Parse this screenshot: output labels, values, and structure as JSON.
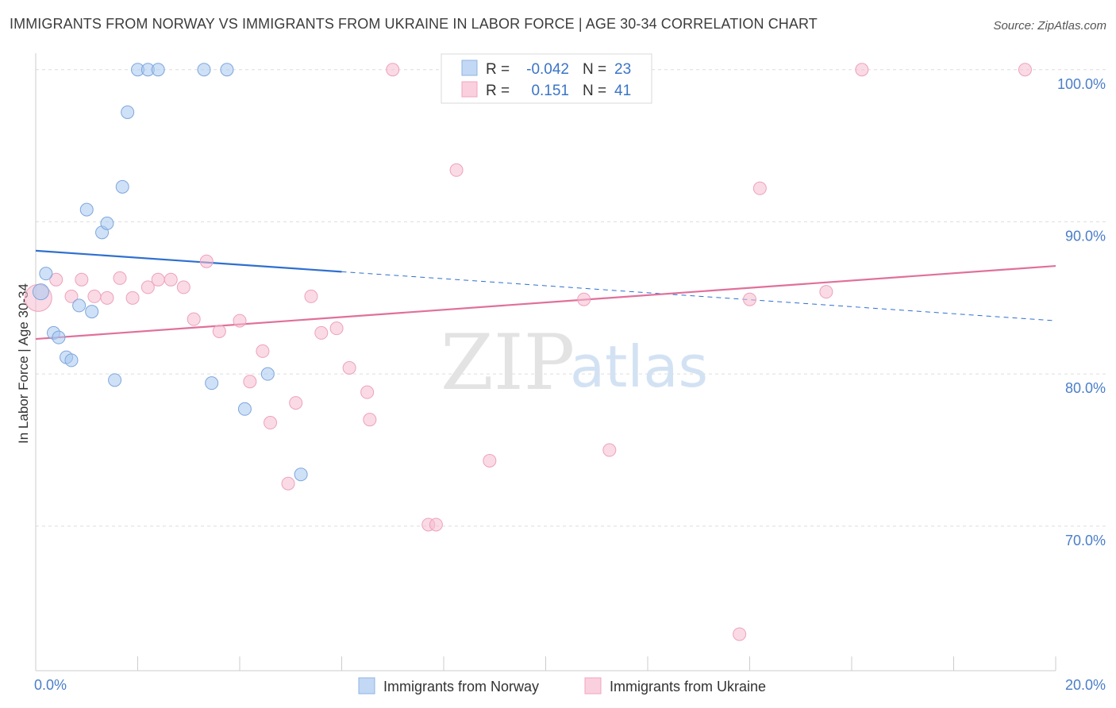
{
  "title": "IMMIGRANTS FROM NORWAY VS IMMIGRANTS FROM UKRAINE IN LABOR FORCE | AGE 30-34 CORRELATION CHART",
  "source": "Source: ZipAtlas.com",
  "watermark": {
    "zip": "ZIP",
    "atlas": "atlas"
  },
  "colors": {
    "norway": "#a8c8f0",
    "norway_line": "#2f6fd0",
    "ukraine": "#f6bcd0",
    "ukraine_line": "#e0709a",
    "axis_text": "#4a7ec9"
  },
  "legend": {
    "norway": {
      "r_label": "R =",
      "r_value": "-0.042",
      "n_label": "N =",
      "n_value": "23"
    },
    "ukraine": {
      "r_label": "R =",
      "r_value": "0.151",
      "n_label": "N =",
      "n_value": "41"
    }
  },
  "chart_data": {
    "type": "scatter",
    "title": "IMMIGRANTS FROM NORWAY VS IMMIGRANTS FROM UKRAINE IN LABOR FORCE | AGE 30-34 CORRELATION CHART",
    "xlabel": "",
    "ylabel": "In Labor Force | Age 30-34",
    "xlim": [
      0,
      20
    ],
    "ylim": [
      60.5,
      101.5
    ],
    "x_ticks": [
      {
        "value": 0,
        "label": "0.0%"
      },
      {
        "value": 20,
        "label": "20.0%"
      }
    ],
    "y_ticks": [
      {
        "value": 100,
        "label": "100.0%"
      },
      {
        "value": 90,
        "label": "90.0%"
      },
      {
        "value": 80,
        "label": "80.0%"
      },
      {
        "value": 70,
        "label": "70.0%"
      }
    ],
    "series": [
      {
        "name": "Immigrants from Norway",
        "points": [
          [
            0.1,
            85.4
          ],
          [
            0.2,
            86.6
          ],
          [
            0.35,
            82.7
          ],
          [
            0.45,
            82.4
          ],
          [
            0.6,
            81.1
          ],
          [
            0.7,
            80.9
          ],
          [
            0.85,
            84.5
          ],
          [
            1.0,
            90.8
          ],
          [
            1.1,
            84.1
          ],
          [
            1.3,
            89.3
          ],
          [
            1.4,
            89.9
          ],
          [
            1.55,
            79.6
          ],
          [
            1.7,
            92.3
          ],
          [
            1.8,
            97.2
          ],
          [
            2.0,
            100.0
          ],
          [
            2.2,
            100.0
          ],
          [
            2.4,
            100.0
          ],
          [
            3.3,
            100.0
          ],
          [
            3.45,
            79.4
          ],
          [
            3.75,
            100.0
          ],
          [
            4.1,
            77.7
          ],
          [
            4.55,
            80.0
          ],
          [
            5.2,
            73.4
          ]
        ],
        "trend": {
          "x_start": 0,
          "y_start": 88.1,
          "x_solid_end": 6.0,
          "x_end": 20,
          "y_end": 83.5
        }
      },
      {
        "name": "Immigrants from Ukraine",
        "points": [
          [
            0.05,
            85.0
          ],
          [
            0.4,
            86.2
          ],
          [
            0.7,
            85.1
          ],
          [
            0.9,
            86.2
          ],
          [
            1.15,
            85.1
          ],
          [
            1.4,
            85.0
          ],
          [
            1.65,
            86.3
          ],
          [
            1.9,
            85.0
          ],
          [
            2.2,
            85.7
          ],
          [
            2.4,
            86.2
          ],
          [
            2.65,
            86.2
          ],
          [
            2.9,
            85.7
          ],
          [
            3.1,
            83.6
          ],
          [
            3.35,
            87.4
          ],
          [
            3.6,
            82.8
          ],
          [
            4.0,
            83.5
          ],
          [
            4.2,
            79.5
          ],
          [
            4.45,
            81.5
          ],
          [
            4.6,
            76.8
          ],
          [
            4.95,
            72.8
          ],
          [
            5.1,
            78.1
          ],
          [
            5.4,
            85.1
          ],
          [
            5.6,
            82.7
          ],
          [
            5.9,
            83.0
          ],
          [
            6.15,
            80.4
          ],
          [
            6.5,
            78.8
          ],
          [
            6.55,
            77.0
          ],
          [
            7.0,
            100.0
          ],
          [
            7.7,
            70.1
          ],
          [
            7.85,
            70.1
          ],
          [
            8.25,
            93.4
          ],
          [
            8.9,
            74.3
          ],
          [
            10.2,
            100.0
          ],
          [
            10.75,
            84.9
          ],
          [
            11.25,
            75.0
          ],
          [
            13.8,
            62.9
          ],
          [
            14.0,
            84.9
          ],
          [
            14.2,
            92.2
          ],
          [
            15.5,
            85.4
          ],
          [
            16.2,
            100.0
          ],
          [
            19.4,
            100.0
          ]
        ],
        "trend": {
          "x_start": 0,
          "y_start": 82.3,
          "x_end": 20,
          "y_end": 87.1
        }
      }
    ],
    "legend": [
      "Immigrants from Norway",
      "Immigrants from Ukraine"
    ]
  }
}
